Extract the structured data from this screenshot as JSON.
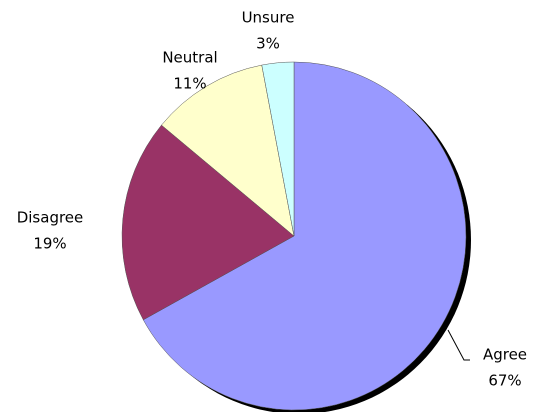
{
  "chart_data": {
    "type": "pie",
    "categories": [
      "Agree",
      "Disagree",
      "Neutral",
      "Unsure"
    ],
    "values": [
      67,
      19,
      11,
      3
    ],
    "value_labels": [
      "67%",
      "19%",
      "11%",
      "3%"
    ],
    "colors": [
      "#9999ff",
      "#993366",
      "#ffffcc",
      "#ccffff"
    ]
  }
}
